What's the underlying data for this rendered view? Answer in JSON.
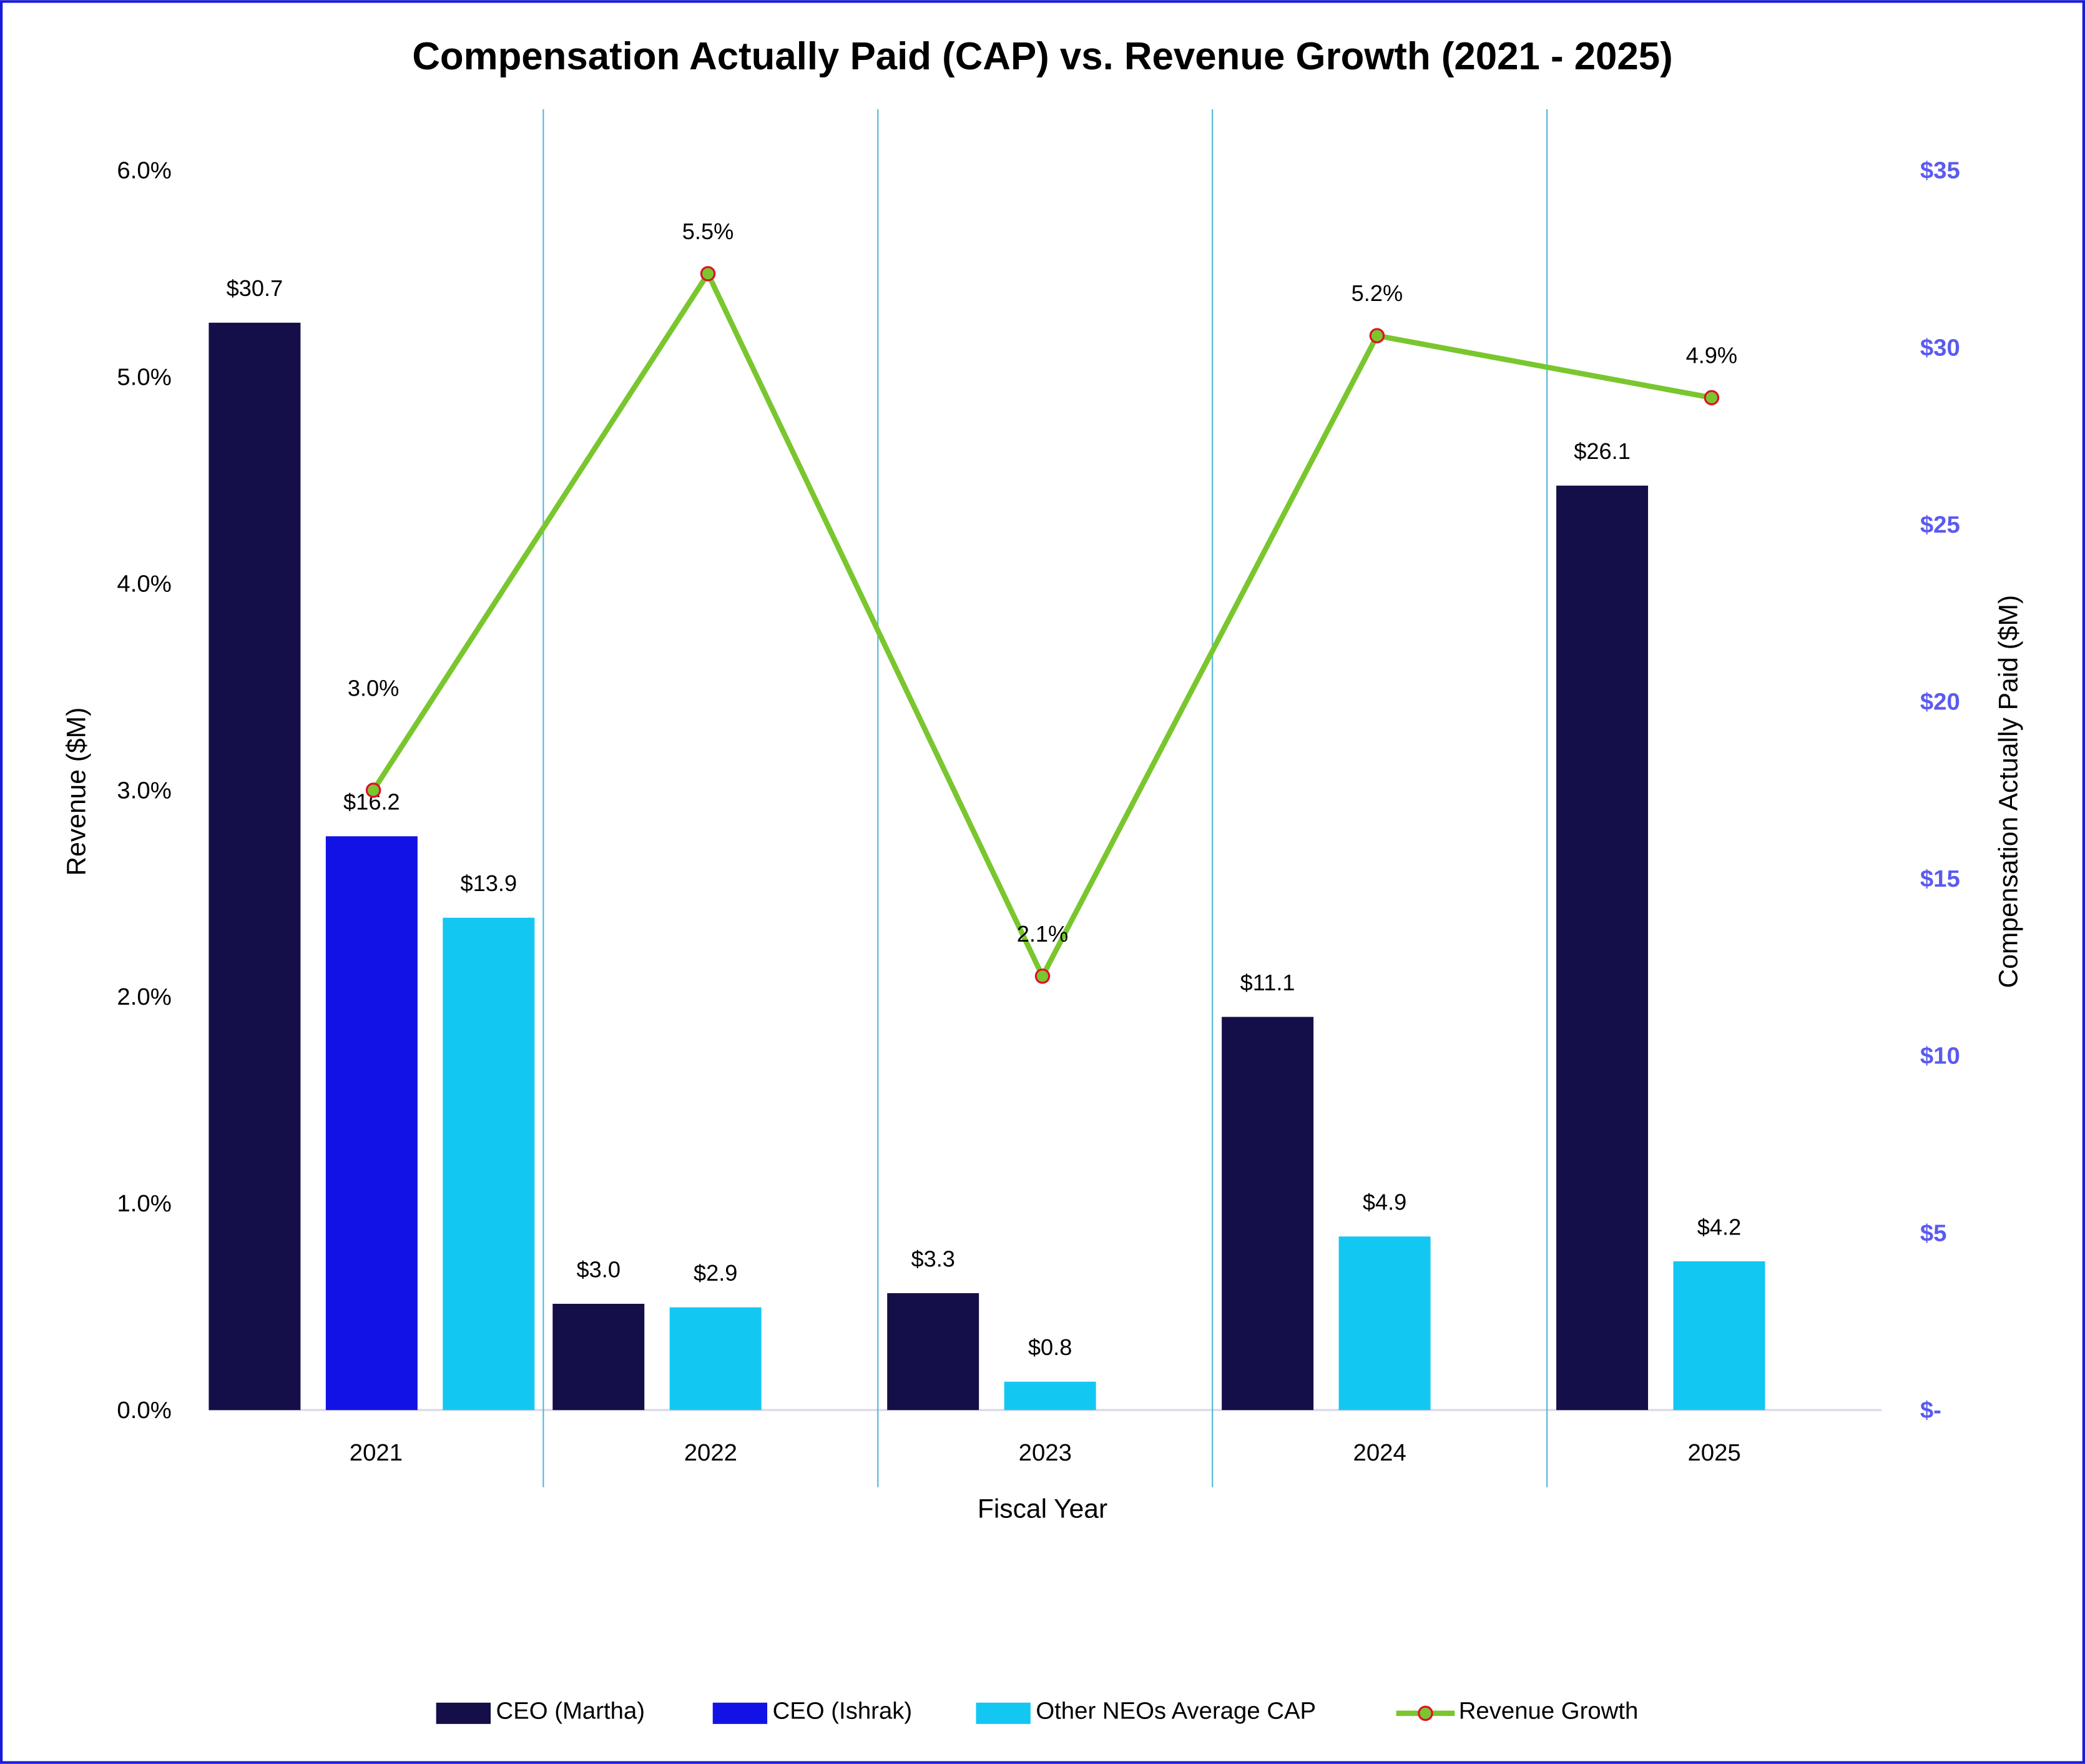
{
  "chart_data": {
    "type": "bar+line",
    "title": "Compensation Actually Paid (CAP) vs. Revenue Growth (2021 - 2025)",
    "xlabel": "Fiscal Year",
    "ylabel_left": "Revenue  ($M)",
    "ylabel_right": "Compensation Actually Paid ($M)",
    "categories": [
      "2021",
      "2022",
      "2023",
      "2024",
      "2025"
    ],
    "ylim_left": [
      0,
      6.0
    ],
    "yticks_left": [
      "0.0%",
      "1.0%",
      "2.0%",
      "3.0%",
      "4.0%",
      "5.0%",
      "6.0%"
    ],
    "ylim_right": [
      0,
      35
    ],
    "yticks_right": [
      "$-",
      "$5",
      "$10",
      "$15",
      "$20",
      "$25",
      "$30",
      "$35"
    ],
    "grid": false,
    "legend_position": "bottom",
    "series": [
      {
        "name": "CEO (Martha)",
        "type": "bar",
        "axis": "right",
        "color": "#140f48",
        "values": [
          30.7,
          3.0,
          3.3,
          11.1,
          26.1
        ],
        "labels": [
          "$30.7",
          "$3.0",
          "$3.3",
          "$11.1",
          "$26.1"
        ]
      },
      {
        "name": "CEO (Ishrak)",
        "type": "bar",
        "axis": "right",
        "color": "#1212e6",
        "values": [
          16.2,
          null,
          null,
          null,
          null
        ],
        "labels": [
          "$16.2",
          null,
          null,
          null,
          null
        ]
      },
      {
        "name": "Other NEOs Average CAP",
        "type": "bar",
        "axis": "right",
        "color": "#12c8f2",
        "values": [
          13.9,
          2.9,
          0.8,
          4.9,
          4.2
        ],
        "labels": [
          "$13.9",
          "$2.9",
          "$0.8",
          "$4.9",
          "$4.2"
        ]
      },
      {
        "name": "Revenue Growth",
        "type": "line",
        "axis": "left",
        "color": "#7ac62e",
        "marker_edge": "#e0102a",
        "values": [
          3.0,
          5.5,
          2.1,
          5.2,
          4.9
        ],
        "labels": [
          "3.0%",
          "5.5%",
          "2.1%",
          "5.2%",
          "4.9%"
        ]
      }
    ],
    "colors": {
      "frame": "#1a1adb",
      "separator": "#4fb8d8",
      "right_axis_text": "#5a5af0",
      "baseline": "#d8d8e8"
    }
  }
}
